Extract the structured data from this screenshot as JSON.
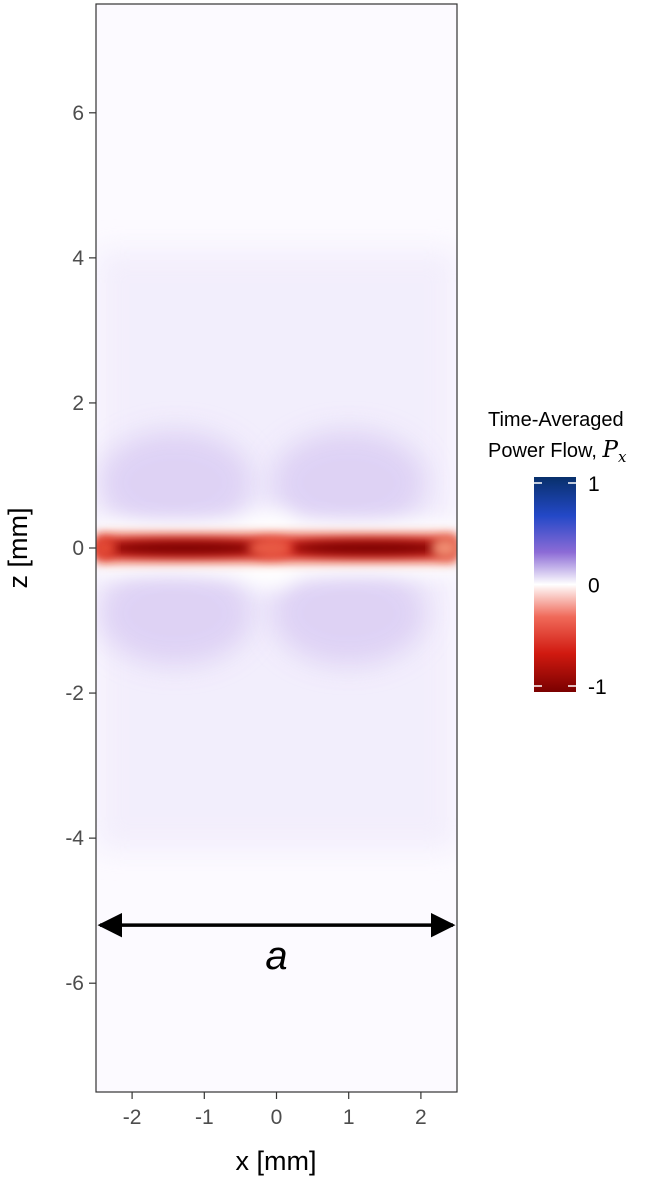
{
  "chart_data": {
    "type": "heatmap",
    "title": "",
    "xlabel": "x [mm]",
    "ylabel": "z [mm]",
    "xlim": [
      -2.5,
      2.5
    ],
    "ylim": [
      -7.5,
      7.5
    ],
    "x_ticks": [
      -2,
      -1,
      0,
      1,
      2
    ],
    "y_ticks": [
      -6,
      -4,
      -2,
      0,
      2,
      4,
      6
    ],
    "x_tick_labels": [
      "-2",
      "-1",
      "0",
      "1",
      "2"
    ],
    "y_tick_labels": [
      "-6",
      "-4",
      "-2",
      "0",
      "2",
      "4",
      "6"
    ],
    "grid": false,
    "legend": {
      "title_line1": "Time-Averaged",
      "title_line2": "Power Flow, ",
      "title_symbol": "P",
      "title_subscript": "x",
      "placement": "right",
      "range": [
        -1,
        1
      ],
      "ticks": [
        1,
        0,
        -1
      ],
      "tick_labels": [
        "1",
        "0",
        "-1"
      ],
      "colors": {
        "high": "#08306b",
        "mid_high": "#8c6bd6",
        "zero": "#ffffff",
        "mid_low": "#e8322a",
        "low": "#7a0000"
      }
    },
    "field": {
      "description_values": {
        "centerline_z": 0,
        "center_value": -1,
        "lobe_value": 0.22,
        "lobe_x_centers": [
          -1.4,
          1.0
        ],
        "lobe_z_centers": [
          0.9,
          -0.9
        ]
      }
    },
    "annotations": [
      {
        "type": "double-arrow",
        "z": -5.2,
        "x_from": -2.5,
        "x_to": 2.5,
        "label": "a"
      }
    ]
  }
}
